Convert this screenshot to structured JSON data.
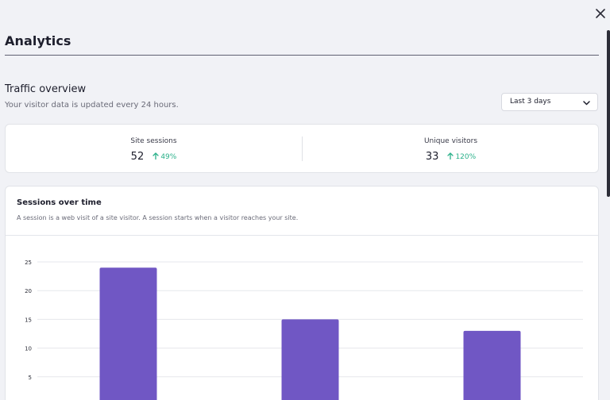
{
  "header": {
    "title": "Analytics",
    "close_icon": "close-icon"
  },
  "traffic": {
    "title": "Traffic overview",
    "subtitle": "Your visitor data is updated every 24 hours.",
    "range_select": {
      "value": "Last 3 days",
      "icon": "chevron-down-icon"
    }
  },
  "stats": [
    {
      "label": "Site sessions",
      "value": "52",
      "trend": "49%",
      "trend_direction": "up"
    },
    {
      "label": "Unique visitors",
      "value": "33",
      "trend": "120%",
      "trend_direction": "up"
    }
  ],
  "colors": {
    "accent": "#7057c4",
    "trend_up": "#2bb18a",
    "background": "#f1f2f6"
  },
  "chart": {
    "title": "Sessions over time",
    "description": "A session is a web visit of a site visitor. A session starts when a visitor reaches your site."
  },
  "chart_data": {
    "type": "bar",
    "title": "Sessions over time",
    "xlabel": "",
    "ylabel": "",
    "categories": [
      "",
      "",
      ""
    ],
    "values": [
      24,
      15,
      13
    ],
    "ylim": [
      0,
      25
    ],
    "yticks": [
      5,
      10,
      15,
      20,
      25
    ],
    "grid": true,
    "legend": "none"
  }
}
